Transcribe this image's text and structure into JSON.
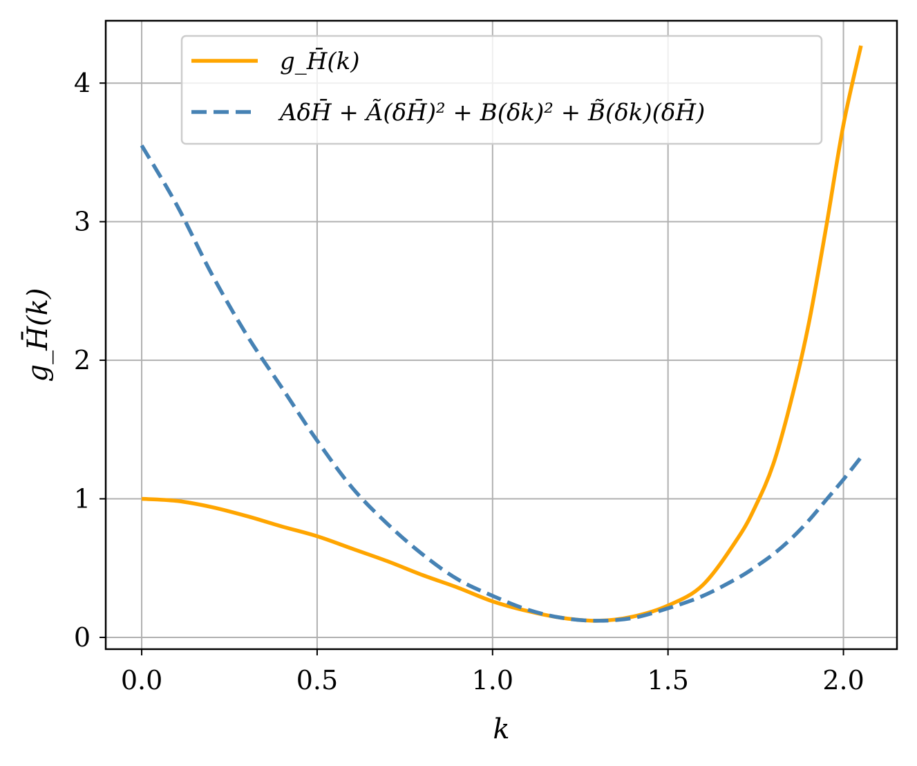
{
  "chart_data": {
    "type": "line",
    "xlabel": "k",
    "ylabel": "g_H̄(k)",
    "xlim": [
      -0.1025,
      2.1525
    ],
    "ylim": [
      -0.085,
      4.45
    ],
    "xticks": [
      0.0,
      0.5,
      1.0,
      1.5,
      2.0
    ],
    "xtick_labels": [
      "0.0",
      "0.5",
      "1.0",
      "1.5",
      "2.0"
    ],
    "yticks": [
      0,
      1,
      2,
      3,
      4
    ],
    "ytick_labels": [
      "0",
      "1",
      "2",
      "3",
      "4"
    ],
    "grid": true,
    "legend_position": "top",
    "x": [
      0.0,
      0.1,
      0.2,
      0.3,
      0.4,
      0.5,
      0.6,
      0.7,
      0.8,
      0.9,
      1.0,
      1.1,
      1.2,
      1.3,
      1.4,
      1.5,
      1.6,
      1.7,
      1.75,
      1.8,
      1.85,
      1.9,
      1.95,
      2.0,
      2.05
    ],
    "series": [
      {
        "name": "g_H̄(k)",
        "color": "#FFA500",
        "style": "solid",
        "values": [
          1.0,
          0.985,
          0.94,
          0.875,
          0.8,
          0.73,
          0.64,
          0.55,
          0.45,
          0.36,
          0.26,
          0.19,
          0.14,
          0.12,
          0.15,
          0.23,
          0.38,
          0.72,
          0.95,
          1.25,
          1.7,
          2.25,
          2.95,
          3.7,
          4.27
        ]
      },
      {
        "name": "AδH̄ + Ã(δH̄)² + B(δk)² + B̃(δk)(δH̄)",
        "color": "#4682B4",
        "style": "dashed",
        "values": [
          3.55,
          3.12,
          2.62,
          2.18,
          1.8,
          1.42,
          1.08,
          0.82,
          0.6,
          0.42,
          0.3,
          0.2,
          0.14,
          0.12,
          0.14,
          0.21,
          0.3,
          0.43,
          0.51,
          0.6,
          0.71,
          0.84,
          0.99,
          1.14,
          1.3
        ]
      }
    ]
  }
}
